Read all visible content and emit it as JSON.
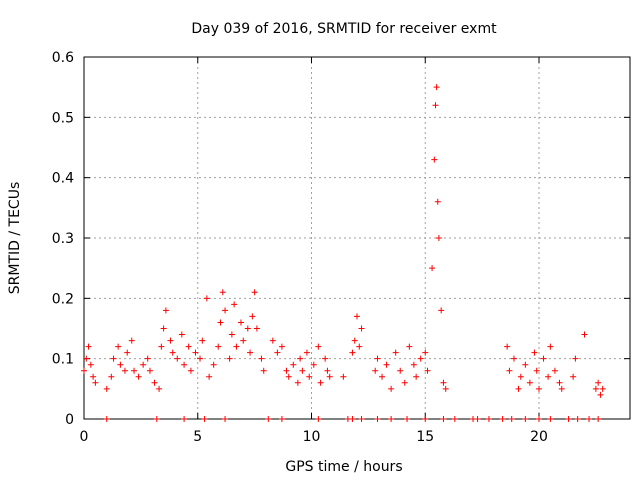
{
  "chart_data": {
    "type": "scatter",
    "title": "Day 039 of 2016, SRMTID for receiver exmt",
    "xlabel": "GPS time / hours",
    "ylabel": "SRMTID / TECUs",
    "xlim": [
      0,
      24
    ],
    "ylim": [
      0,
      0.6
    ],
    "xticks": [
      0,
      5,
      10,
      15,
      20
    ],
    "yticks": [
      0,
      0.1,
      0.2,
      0.3,
      0.4,
      0.5,
      0.6
    ],
    "xtick_labels": [
      "0",
      "5",
      "10",
      "15",
      "20"
    ],
    "ytick_labels": [
      "0",
      "0.1",
      "0.2",
      "0.3",
      "0.4",
      "0.5",
      "0.6"
    ],
    "grid": true,
    "marker": "+",
    "color": "#ff0000",
    "x": [
      0.0,
      0.1,
      0.2,
      0.3,
      0.4,
      0.5,
      1.0,
      1.2,
      1.3,
      1.5,
      1.6,
      1.8,
      1.9,
      2.1,
      2.2,
      2.4,
      2.6,
      2.8,
      2.9,
      3.1,
      3.3,
      3.4,
      3.5,
      3.6,
      3.8,
      3.9,
      4.1,
      4.3,
      4.4,
      4.6,
      4.7,
      4.9,
      5.1,
      5.2,
      5.4,
      5.5,
      5.7,
      5.9,
      6.0,
      6.1,
      6.2,
      6.4,
      6.5,
      6.6,
      6.7,
      6.9,
      7.0,
      7.2,
      7.3,
      7.4,
      7.5,
      7.6,
      7.8,
      7.9,
      8.3,
      8.5,
      8.7,
      8.9,
      9.0,
      9.2,
      9.4,
      9.5,
      9.6,
      9.8,
      9.9,
      10.1,
      10.3,
      10.4,
      10.6,
      10.7,
      10.8,
      11.4,
      11.8,
      11.9,
      12.0,
      12.1,
      12.2,
      12.8,
      12.9,
      13.1,
      13.3,
      13.5,
      13.7,
      13.9,
      14.1,
      14.3,
      14.5,
      14.6,
      14.8,
      15.0,
      15.1,
      15.3,
      15.4,
      15.45,
      15.5,
      15.55,
      15.6,
      15.7,
      15.8,
      15.9,
      18.6,
      18.7,
      18.9,
      19.1,
      19.2,
      19.4,
      19.6,
      19.8,
      19.9,
      20.0,
      20.2,
      20.4,
      20.5,
      20.7,
      20.9,
      21.0,
      21.5,
      21.6,
      22.0,
      22.5,
      22.6,
      22.7,
      22.8
    ],
    "y": [
      0.08,
      0.1,
      0.12,
      0.09,
      0.07,
      0.06,
      0.05,
      0.07,
      0.1,
      0.12,
      0.09,
      0.08,
      0.11,
      0.13,
      0.08,
      0.07,
      0.09,
      0.1,
      0.08,
      0.06,
      0.05,
      0.12,
      0.15,
      0.18,
      0.13,
      0.11,
      0.1,
      0.14,
      0.09,
      0.12,
      0.08,
      0.11,
      0.1,
      0.13,
      0.2,
      0.07,
      0.09,
      0.12,
      0.16,
      0.21,
      0.18,
      0.1,
      0.14,
      0.19,
      0.12,
      0.16,
      0.13,
      0.15,
      0.11,
      0.17,
      0.21,
      0.15,
      0.1,
      0.08,
      0.13,
      0.11,
      0.12,
      0.08,
      0.07,
      0.09,
      0.06,
      0.1,
      0.08,
      0.11,
      0.07,
      0.09,
      0.12,
      0.06,
      0.1,
      0.08,
      0.07,
      0.07,
      0.11,
      0.13,
      0.17,
      0.12,
      0.15,
      0.08,
      0.1,
      0.07,
      0.09,
      0.05,
      0.11,
      0.08,
      0.06,
      0.12,
      0.09,
      0.07,
      0.1,
      0.11,
      0.08,
      0.25,
      0.43,
      0.52,
      0.55,
      0.36,
      0.3,
      0.18,
      0.06,
      0.05,
      0.12,
      0.08,
      0.1,
      0.05,
      0.07,
      0.09,
      0.06,
      0.11,
      0.08,
      0.05,
      0.1,
      0.07,
      0.12,
      0.08,
      0.06,
      0.05,
      0.07,
      0.1,
      0.14,
      0.05,
      0.06,
      0.04,
      0.05
    ],
    "zero_x": [
      1.0,
      3.2,
      4.4,
      5.3,
      6.2,
      8.1,
      8.7,
      10.3,
      11.6,
      11.8,
      12.2,
      12.9,
      13.5,
      14.2,
      15.0,
      15.8,
      16.3,
      17.1,
      17.3,
      17.8,
      18.4,
      18.8,
      19.4,
      20.0,
      20.5,
      21.3,
      21.7,
      22.2,
      22.6
    ]
  }
}
